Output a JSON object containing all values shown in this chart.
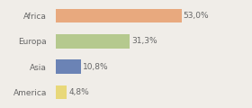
{
  "categories": [
    "Africa",
    "Europa",
    "Asia",
    "America"
  ],
  "values": [
    53.0,
    31.3,
    10.8,
    4.8
  ],
  "labels": [
    "53,0%",
    "31,3%",
    "10,8%",
    "4,8%"
  ],
  "bar_colors": [
    "#e8a97e",
    "#b5c98e",
    "#6b83b5",
    "#e8d87a"
  ],
  "background_color": "#f0ede8",
  "xlim": [
    0,
    70
  ],
  "bar_height": 0.55,
  "label_fontsize": 6.5,
  "tick_fontsize": 6.5,
  "label_color": "#666666",
  "tick_color": "#666666"
}
